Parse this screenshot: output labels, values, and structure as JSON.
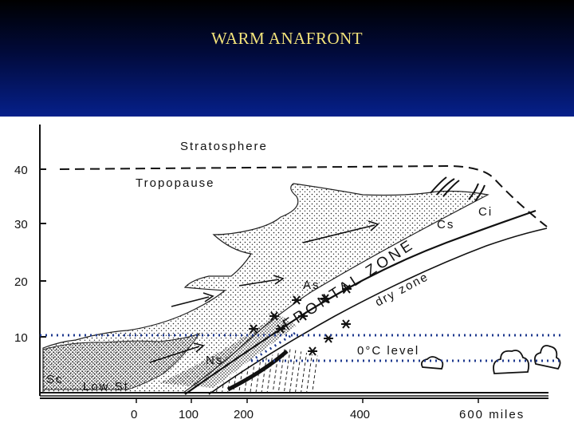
{
  "slide": {
    "title": "WARM ANAFRONT",
    "colors": {
      "header_dark": "#000000",
      "header_light": "#06208a",
      "title_color": "#f2e27a",
      "dotted_line": "#1f3a8f"
    }
  },
  "diagram": {
    "y_axis_ticks": [
      "40",
      "30",
      "20",
      "10"
    ],
    "x_axis_ticks": [
      "0",
      "100",
      "200",
      "400",
      "600 miles"
    ],
    "labels": {
      "stratosphere": "Stratosphere",
      "tropopause": "Tropopause",
      "cirrus": "Ci",
      "cirrostratus": "Cs",
      "altostratus": "As",
      "nimbostratus": "Ns",
      "stratocumulus": "Sc",
      "low_stratus": "Low St",
      "frontal_zone": "FRONTAL ZONE",
      "dry_zone": "dry zone",
      "freezing_level": "0°C level"
    },
    "dotted_levels": [
      "10",
      "5"
    ]
  }
}
